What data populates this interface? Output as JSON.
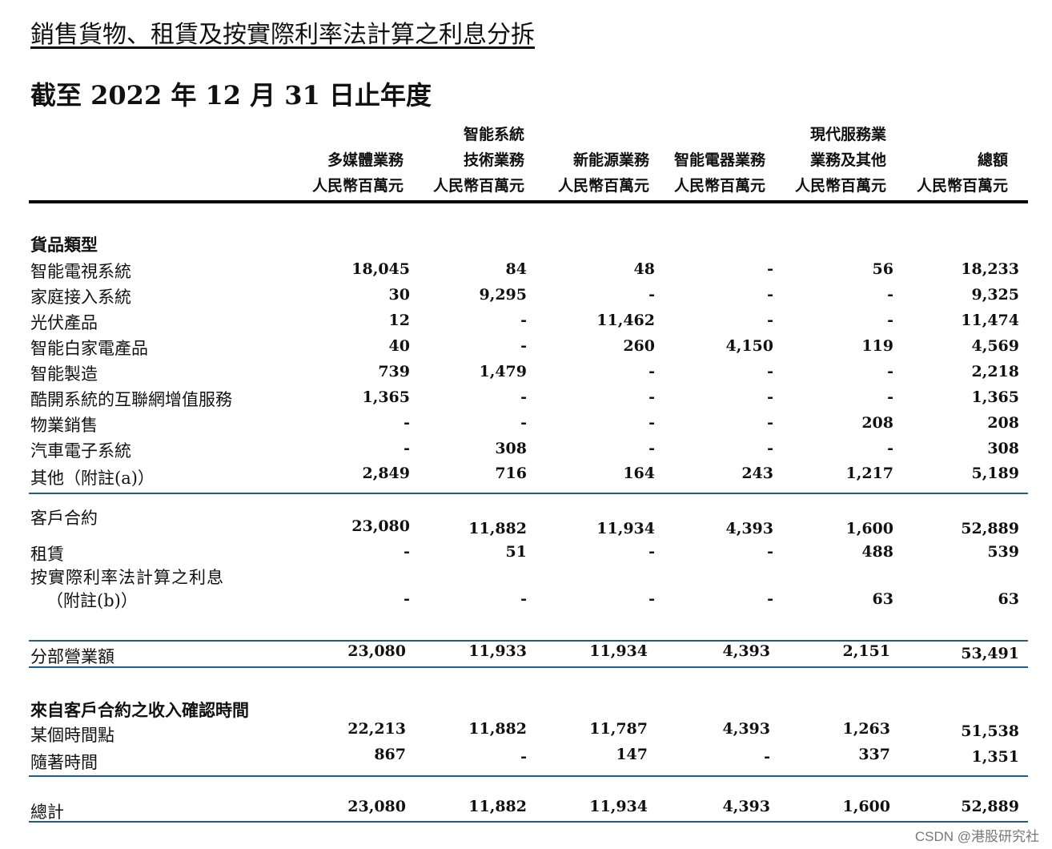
{
  "title": "銷售貨物、租賃及按實際利率法計算之利息分拆",
  "subtitle": "截至 2022 年 12 月 31 日止年度",
  "columns": [
    {
      "line1": "",
      "line2": "多媒體業務",
      "unit": "人民幣百萬元"
    },
    {
      "line1": "智能系統",
      "line2": "技術業務",
      "unit": "人民幣百萬元"
    },
    {
      "line1": "",
      "line2": "新能源業務",
      "unit": "人民幣百萬元"
    },
    {
      "line1": "",
      "line2": "智能電器業務",
      "unit": "人民幣百萬元"
    },
    {
      "line1": "現代服務業",
      "line2": "業務及其他",
      "unit": "人民幣百萬元"
    },
    {
      "line1": "",
      "line2": "總額",
      "unit": "人民幣百萬元"
    }
  ],
  "goods_section": {
    "heading": "貨品類型",
    "rows": [
      {
        "label": "智能電視系統",
        "values": [
          "18,045",
          "84",
          "48",
          "-",
          "56",
          "18,233"
        ]
      },
      {
        "label": "家庭接入系統",
        "values": [
          "30",
          "9,295",
          "-",
          "-",
          "-",
          "9,325"
        ]
      },
      {
        "label": "光伏產品",
        "values": [
          "12",
          "-",
          "11,462",
          "-",
          "-",
          "11,474"
        ]
      },
      {
        "label": "智能白家電產品",
        "values": [
          "40",
          "-",
          "260",
          "4,150",
          "119",
          "4,569"
        ]
      },
      {
        "label": "智能製造",
        "values": [
          "739",
          "1,479",
          "-",
          "-",
          "-",
          "2,218"
        ]
      },
      {
        "label": "酷開系統的互聯網增值服務",
        "values": [
          "1,365",
          "-",
          "-",
          "-",
          "-",
          "1,365"
        ]
      },
      {
        "label": "物業銷售",
        "values": [
          "-",
          "-",
          "-",
          "-",
          "208",
          "208"
        ]
      },
      {
        "label": "汽車電子系統",
        "values": [
          "-",
          "308",
          "-",
          "-",
          "-",
          "308"
        ]
      },
      {
        "label": "其他（附註(a)）",
        "values": [
          "2,849",
          "716",
          "164",
          "243",
          "1,217",
          "5,189"
        ]
      }
    ]
  },
  "contract_rows": [
    {
      "label": "客戶合約",
      "values": [
        "23,080",
        "11,882",
        "11,934",
        "4,393",
        "1,600",
        "52,889"
      ]
    },
    {
      "label": "租賃",
      "values": [
        "-",
        "51",
        "-",
        "-",
        "488",
        "539"
      ]
    },
    {
      "label": "按實際利率法計算之利息",
      "label2": "（附註(b)）",
      "values": [
        "-",
        "-",
        "-",
        "-",
        "63",
        "63"
      ]
    }
  ],
  "segment_total": {
    "label": "分部營業額",
    "values": [
      "23,080",
      "11,933",
      "11,934",
      "4,393",
      "2,151",
      "53,491"
    ]
  },
  "timing_section": {
    "heading": "來自客戶合約之收入確認時間",
    "rows": [
      {
        "label": "某個時間點",
        "values": [
          "22,213",
          "11,882",
          "11,787",
          "4,393",
          "1,263",
          "51,538"
        ]
      },
      {
        "label": "隨著時間",
        "values": [
          "867",
          "-",
          "147",
          "-",
          "337",
          "1,351"
        ]
      }
    ]
  },
  "grand_total": {
    "label": "總計",
    "values": [
      "23,080",
      "11,882",
      "11,934",
      "4,393",
      "1,600",
      "52,889"
    ]
  },
  "watermark": "CSDN @港股研究社"
}
